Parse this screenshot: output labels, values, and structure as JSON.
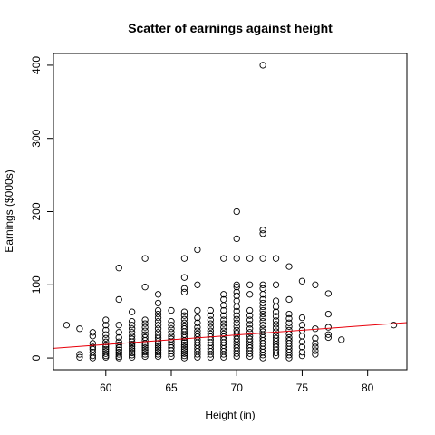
{
  "chart_data": {
    "type": "scatter",
    "title": "Scatter of earnings against height",
    "xlabel": "Height (in)",
    "ylabel": "Earnings ($000s)",
    "xlim": [
      56,
      83
    ],
    "ylim": [
      -16,
      416
    ],
    "x_ticks": [
      60,
      65,
      70,
      75,
      80
    ],
    "y_ticks": [
      0,
      100,
      200,
      300,
      400
    ],
    "grid": false,
    "legend": "none",
    "point_color": "#000000",
    "fit_line": {
      "intercept": -59.5,
      "slope": 1.3,
      "color": "#ff0000"
    },
    "points": [
      {
        "x": 57,
        "y": 45
      },
      {
        "x": 58,
        "y": 40
      },
      {
        "x": 58,
        "y": 5
      },
      {
        "x": 58,
        "y": 1
      },
      {
        "x": 59,
        "y": 35
      },
      {
        "x": 59,
        "y": 30
      },
      {
        "x": 59,
        "y": 20
      },
      {
        "x": 59,
        "y": 15
      },
      {
        "x": 59,
        "y": 12
      },
      {
        "x": 59,
        "y": 8
      },
      {
        "x": 59,
        "y": 3
      },
      {
        "x": 59,
        "y": 0
      },
      {
        "x": 60,
        "y": 52
      },
      {
        "x": 60,
        "y": 45
      },
      {
        "x": 60,
        "y": 38
      },
      {
        "x": 60,
        "y": 32
      },
      {
        "x": 60,
        "y": 27
      },
      {
        "x": 60,
        "y": 22
      },
      {
        "x": 60,
        "y": 18
      },
      {
        "x": 60,
        "y": 15
      },
      {
        "x": 60,
        "y": 12
      },
      {
        "x": 60,
        "y": 9
      },
      {
        "x": 60,
        "y": 6
      },
      {
        "x": 60,
        "y": 3
      },
      {
        "x": 60,
        "y": 1
      },
      {
        "x": 61,
        "y": 123
      },
      {
        "x": 61,
        "y": 80
      },
      {
        "x": 61,
        "y": 45
      },
      {
        "x": 61,
        "y": 35
      },
      {
        "x": 61,
        "y": 28
      },
      {
        "x": 61,
        "y": 22
      },
      {
        "x": 61,
        "y": 18
      },
      {
        "x": 61,
        "y": 14
      },
      {
        "x": 61,
        "y": 11
      },
      {
        "x": 61,
        "y": 8
      },
      {
        "x": 61,
        "y": 5
      },
      {
        "x": 61,
        "y": 2
      },
      {
        "x": 61,
        "y": 0
      },
      {
        "x": 62,
        "y": 63
      },
      {
        "x": 62,
        "y": 50
      },
      {
        "x": 62,
        "y": 45
      },
      {
        "x": 62,
        "y": 40
      },
      {
        "x": 62,
        "y": 35
      },
      {
        "x": 62,
        "y": 30
      },
      {
        "x": 62,
        "y": 26
      },
      {
        "x": 62,
        "y": 22
      },
      {
        "x": 62,
        "y": 19
      },
      {
        "x": 62,
        "y": 16
      },
      {
        "x": 62,
        "y": 13
      },
      {
        "x": 62,
        "y": 10
      },
      {
        "x": 62,
        "y": 7
      },
      {
        "x": 62,
        "y": 4
      },
      {
        "x": 62,
        "y": 1
      },
      {
        "x": 63,
        "y": 136
      },
      {
        "x": 63,
        "y": 97
      },
      {
        "x": 63,
        "y": 52
      },
      {
        "x": 63,
        "y": 47
      },
      {
        "x": 63,
        "y": 42
      },
      {
        "x": 63,
        "y": 37
      },
      {
        "x": 63,
        "y": 32
      },
      {
        "x": 63,
        "y": 28
      },
      {
        "x": 63,
        "y": 24
      },
      {
        "x": 63,
        "y": 20
      },
      {
        "x": 63,
        "y": 17
      },
      {
        "x": 63,
        "y": 14
      },
      {
        "x": 63,
        "y": 11
      },
      {
        "x": 63,
        "y": 8
      },
      {
        "x": 63,
        "y": 5
      },
      {
        "x": 63,
        "y": 2
      },
      {
        "x": 64,
        "y": 87
      },
      {
        "x": 64,
        "y": 75
      },
      {
        "x": 64,
        "y": 65
      },
      {
        "x": 64,
        "y": 60
      },
      {
        "x": 64,
        "y": 55
      },
      {
        "x": 64,
        "y": 50
      },
      {
        "x": 64,
        "y": 45
      },
      {
        "x": 64,
        "y": 40
      },
      {
        "x": 64,
        "y": 35
      },
      {
        "x": 64,
        "y": 31
      },
      {
        "x": 64,
        "y": 27
      },
      {
        "x": 64,
        "y": 23
      },
      {
        "x": 64,
        "y": 20
      },
      {
        "x": 64,
        "y": 17
      },
      {
        "x": 64,
        "y": 14
      },
      {
        "x": 64,
        "y": 11
      },
      {
        "x": 64,
        "y": 8
      },
      {
        "x": 64,
        "y": 5
      },
      {
        "x": 64,
        "y": 2
      },
      {
        "x": 65,
        "y": 65
      },
      {
        "x": 65,
        "y": 50
      },
      {
        "x": 65,
        "y": 45
      },
      {
        "x": 65,
        "y": 40
      },
      {
        "x": 65,
        "y": 35
      },
      {
        "x": 65,
        "y": 30
      },
      {
        "x": 65,
        "y": 26
      },
      {
        "x": 65,
        "y": 22
      },
      {
        "x": 65,
        "y": 18
      },
      {
        "x": 65,
        "y": 14
      },
      {
        "x": 65,
        "y": 10
      },
      {
        "x": 65,
        "y": 6
      },
      {
        "x": 65,
        "y": 2
      },
      {
        "x": 66,
        "y": 136
      },
      {
        "x": 66,
        "y": 110
      },
      {
        "x": 66,
        "y": 95
      },
      {
        "x": 66,
        "y": 90
      },
      {
        "x": 66,
        "y": 63
      },
      {
        "x": 66,
        "y": 58
      },
      {
        "x": 66,
        "y": 53
      },
      {
        "x": 66,
        "y": 48
      },
      {
        "x": 66,
        "y": 44
      },
      {
        "x": 66,
        "y": 40
      },
      {
        "x": 66,
        "y": 36
      },
      {
        "x": 66,
        "y": 32
      },
      {
        "x": 66,
        "y": 28
      },
      {
        "x": 66,
        "y": 24
      },
      {
        "x": 66,
        "y": 21
      },
      {
        "x": 66,
        "y": 18
      },
      {
        "x": 66,
        "y": 15
      },
      {
        "x": 66,
        "y": 12
      },
      {
        "x": 66,
        "y": 9
      },
      {
        "x": 66,
        "y": 6
      },
      {
        "x": 66,
        "y": 3
      },
      {
        "x": 66,
        "y": 0
      },
      {
        "x": 67,
        "y": 148
      },
      {
        "x": 67,
        "y": 100
      },
      {
        "x": 67,
        "y": 65
      },
      {
        "x": 67,
        "y": 55
      },
      {
        "x": 67,
        "y": 48
      },
      {
        "x": 67,
        "y": 42
      },
      {
        "x": 67,
        "y": 37
      },
      {
        "x": 67,
        "y": 33
      },
      {
        "x": 67,
        "y": 29
      },
      {
        "x": 67,
        "y": 25
      },
      {
        "x": 67,
        "y": 21
      },
      {
        "x": 67,
        "y": 17
      },
      {
        "x": 67,
        "y": 13
      },
      {
        "x": 67,
        "y": 9
      },
      {
        "x": 67,
        "y": 5
      },
      {
        "x": 67,
        "y": 1
      },
      {
        "x": 68,
        "y": 65
      },
      {
        "x": 68,
        "y": 58
      },
      {
        "x": 68,
        "y": 52
      },
      {
        "x": 68,
        "y": 47
      },
      {
        "x": 68,
        "y": 42
      },
      {
        "x": 68,
        "y": 37
      },
      {
        "x": 68,
        "y": 33
      },
      {
        "x": 68,
        "y": 29
      },
      {
        "x": 68,
        "y": 25
      },
      {
        "x": 68,
        "y": 21
      },
      {
        "x": 68,
        "y": 17
      },
      {
        "x": 68,
        "y": 13
      },
      {
        "x": 68,
        "y": 9
      },
      {
        "x": 68,
        "y": 5
      },
      {
        "x": 68,
        "y": 1
      },
      {
        "x": 69,
        "y": 136
      },
      {
        "x": 69,
        "y": 87
      },
      {
        "x": 69,
        "y": 80
      },
      {
        "x": 69,
        "y": 72
      },
      {
        "x": 69,
        "y": 65
      },
      {
        "x": 69,
        "y": 58
      },
      {
        "x": 69,
        "y": 52
      },
      {
        "x": 69,
        "y": 47
      },
      {
        "x": 69,
        "y": 42
      },
      {
        "x": 69,
        "y": 37
      },
      {
        "x": 69,
        "y": 33
      },
      {
        "x": 69,
        "y": 29
      },
      {
        "x": 69,
        "y": 25
      },
      {
        "x": 69,
        "y": 21
      },
      {
        "x": 69,
        "y": 17
      },
      {
        "x": 69,
        "y": 13
      },
      {
        "x": 69,
        "y": 9
      },
      {
        "x": 69,
        "y": 5
      },
      {
        "x": 69,
        "y": 1
      },
      {
        "x": 70,
        "y": 200
      },
      {
        "x": 70,
        "y": 163
      },
      {
        "x": 70,
        "y": 136
      },
      {
        "x": 70,
        "y": 100
      },
      {
        "x": 70,
        "y": 97
      },
      {
        "x": 70,
        "y": 90
      },
      {
        "x": 70,
        "y": 85
      },
      {
        "x": 70,
        "y": 78
      },
      {
        "x": 70,
        "y": 70
      },
      {
        "x": 70,
        "y": 64
      },
      {
        "x": 70,
        "y": 58
      },
      {
        "x": 70,
        "y": 53
      },
      {
        "x": 70,
        "y": 48
      },
      {
        "x": 70,
        "y": 43
      },
      {
        "x": 70,
        "y": 38
      },
      {
        "x": 70,
        "y": 34
      },
      {
        "x": 70,
        "y": 30
      },
      {
        "x": 70,
        "y": 26
      },
      {
        "x": 70,
        "y": 22
      },
      {
        "x": 70,
        "y": 18
      },
      {
        "x": 70,
        "y": 14
      },
      {
        "x": 70,
        "y": 10
      },
      {
        "x": 70,
        "y": 6
      },
      {
        "x": 70,
        "y": 2
      },
      {
        "x": 71,
        "y": 136
      },
      {
        "x": 71,
        "y": 100
      },
      {
        "x": 71,
        "y": 87
      },
      {
        "x": 71,
        "y": 65
      },
      {
        "x": 71,
        "y": 58
      },
      {
        "x": 71,
        "y": 52
      },
      {
        "x": 71,
        "y": 46
      },
      {
        "x": 71,
        "y": 40
      },
      {
        "x": 71,
        "y": 35
      },
      {
        "x": 71,
        "y": 30
      },
      {
        "x": 71,
        "y": 26
      },
      {
        "x": 71,
        "y": 22
      },
      {
        "x": 71,
        "y": 18
      },
      {
        "x": 71,
        "y": 14
      },
      {
        "x": 71,
        "y": 10
      },
      {
        "x": 71,
        "y": 6
      },
      {
        "x": 71,
        "y": 2
      },
      {
        "x": 72,
        "y": 400
      },
      {
        "x": 72,
        "y": 175
      },
      {
        "x": 72,
        "y": 170
      },
      {
        "x": 72,
        "y": 136
      },
      {
        "x": 72,
        "y": 100
      },
      {
        "x": 72,
        "y": 95
      },
      {
        "x": 72,
        "y": 87
      },
      {
        "x": 72,
        "y": 80
      },
      {
        "x": 72,
        "y": 75
      },
      {
        "x": 72,
        "y": 70
      },
      {
        "x": 72,
        "y": 65
      },
      {
        "x": 72,
        "y": 60
      },
      {
        "x": 72,
        "y": 55
      },
      {
        "x": 72,
        "y": 50
      },
      {
        "x": 72,
        "y": 45
      },
      {
        "x": 72,
        "y": 40
      },
      {
        "x": 72,
        "y": 36
      },
      {
        "x": 72,
        "y": 32
      },
      {
        "x": 72,
        "y": 28
      },
      {
        "x": 72,
        "y": 24
      },
      {
        "x": 72,
        "y": 20
      },
      {
        "x": 72,
        "y": 16
      },
      {
        "x": 72,
        "y": 12
      },
      {
        "x": 72,
        "y": 8
      },
      {
        "x": 72,
        "y": 4
      },
      {
        "x": 72,
        "y": 0
      },
      {
        "x": 73,
        "y": 136
      },
      {
        "x": 73,
        "y": 100
      },
      {
        "x": 73,
        "y": 78
      },
      {
        "x": 73,
        "y": 70
      },
      {
        "x": 73,
        "y": 63
      },
      {
        "x": 73,
        "y": 57
      },
      {
        "x": 73,
        "y": 51
      },
      {
        "x": 73,
        "y": 46
      },
      {
        "x": 73,
        "y": 41
      },
      {
        "x": 73,
        "y": 36
      },
      {
        "x": 73,
        "y": 31
      },
      {
        "x": 73,
        "y": 27
      },
      {
        "x": 73,
        "y": 23
      },
      {
        "x": 73,
        "y": 19
      },
      {
        "x": 73,
        "y": 15
      },
      {
        "x": 73,
        "y": 11
      },
      {
        "x": 73,
        "y": 7
      },
      {
        "x": 73,
        "y": 3
      },
      {
        "x": 74,
        "y": 125
      },
      {
        "x": 74,
        "y": 80
      },
      {
        "x": 74,
        "y": 60
      },
      {
        "x": 74,
        "y": 54
      },
      {
        "x": 74,
        "y": 48
      },
      {
        "x": 74,
        "y": 43
      },
      {
        "x": 74,
        "y": 38
      },
      {
        "x": 74,
        "y": 33
      },
      {
        "x": 74,
        "y": 28
      },
      {
        "x": 74,
        "y": 24
      },
      {
        "x": 74,
        "y": 20
      },
      {
        "x": 74,
        "y": 16
      },
      {
        "x": 74,
        "y": 12
      },
      {
        "x": 74,
        "y": 8
      },
      {
        "x": 74,
        "y": 4
      },
      {
        "x": 74,
        "y": 0
      },
      {
        "x": 75,
        "y": 105
      },
      {
        "x": 75,
        "y": 55
      },
      {
        "x": 75,
        "y": 45
      },
      {
        "x": 75,
        "y": 38
      },
      {
        "x": 75,
        "y": 30
      },
      {
        "x": 75,
        "y": 22
      },
      {
        "x": 75,
        "y": 15
      },
      {
        "x": 75,
        "y": 8
      },
      {
        "x": 75,
        "y": 3
      },
      {
        "x": 76,
        "y": 100
      },
      {
        "x": 76,
        "y": 40
      },
      {
        "x": 76,
        "y": 27
      },
      {
        "x": 76,
        "y": 20
      },
      {
        "x": 76,
        "y": 15
      },
      {
        "x": 76,
        "y": 10
      },
      {
        "x": 76,
        "y": 5
      },
      {
        "x": 77,
        "y": 88
      },
      {
        "x": 77,
        "y": 60
      },
      {
        "x": 77,
        "y": 42
      },
      {
        "x": 77,
        "y": 32
      },
      {
        "x": 77,
        "y": 28
      },
      {
        "x": 78,
        "y": 25
      },
      {
        "x": 82,
        "y": 45
      }
    ]
  }
}
